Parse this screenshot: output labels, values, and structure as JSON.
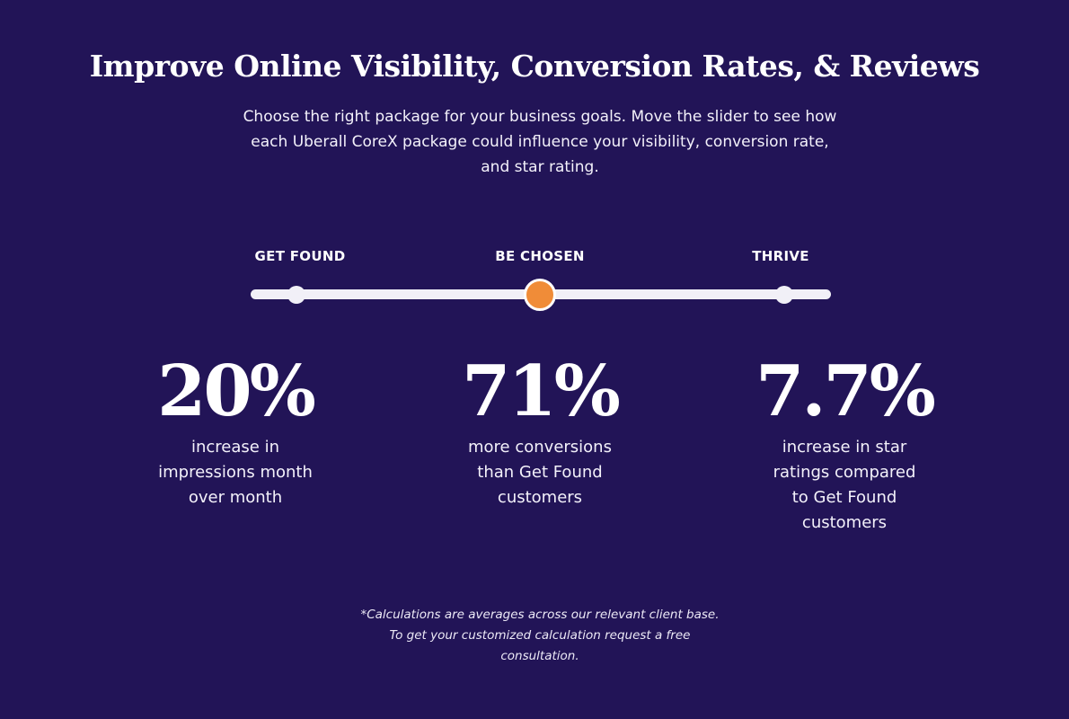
{
  "header": {
    "title": "Improve Online Visibility, Conversion Rates, & Reviews",
    "subtitle": "Choose the right package for your business goals. Move the slider to see how each Uberall CoreX package could influence your visibility, conversion rate, and star rating."
  },
  "slider": {
    "tiers": [
      {
        "label": "GET FOUND"
      },
      {
        "label": "BE CHOSEN"
      },
      {
        "label": "THRIVE"
      }
    ],
    "selected_index": 1,
    "accent_color": "#f08c38",
    "track_color": "#f1f0f7"
  },
  "stats": [
    {
      "value": "20%",
      "description": "increase in impressions month over month"
    },
    {
      "value": "71%",
      "description": "more conversions than Get Found customers"
    },
    {
      "value": "7.7%",
      "description": "increase in star ratings compared to Get Found customers"
    }
  ],
  "footnote": "*Calculations are averages across our relevant client base. To get your customized calculation request a free consultation.",
  "colors": {
    "background": "#221457",
    "text": "#ffffff"
  }
}
